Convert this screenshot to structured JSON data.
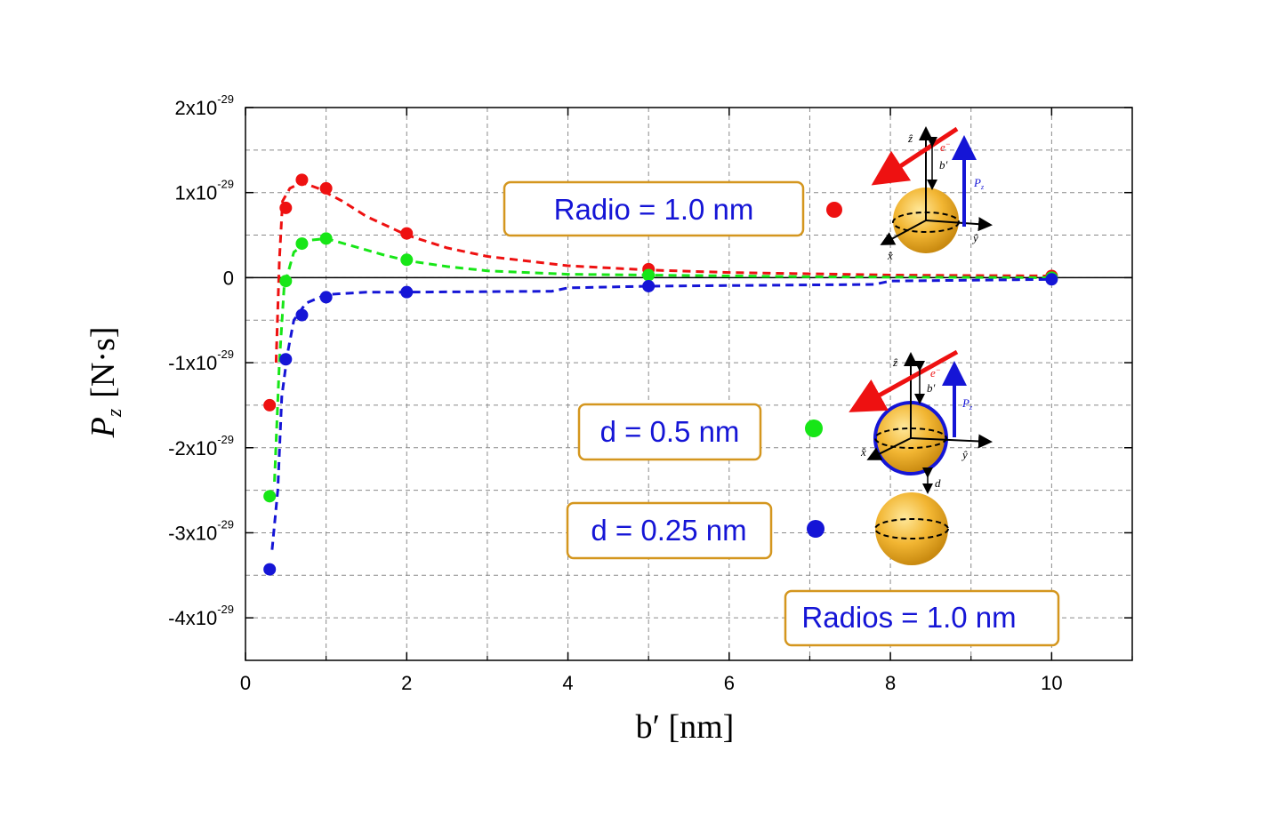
{
  "chart_data": {
    "type": "scatter",
    "xlabel": "b′ [nm]",
    "ylabel_main": "P",
    "ylabel_sub": "z",
    "ylabel_unit": "[N·s]",
    "xlim": [
      0,
      11
    ],
    "ylim": [
      -4.5e-29,
      2e-29
    ],
    "x_ticks": [
      0,
      2,
      4,
      6,
      8,
      10
    ],
    "x_tick_labels": [
      "0",
      "2",
      "4",
      "6",
      "8",
      "10"
    ],
    "y_ticks": [
      2e-29,
      1e-29,
      0,
      -1e-29,
      -2e-29,
      -3e-29,
      -4e-29
    ],
    "y_tick_labels": [
      {
        "base": "2x10",
        "exp": "-29"
      },
      {
        "base": "1x10",
        "exp": "-29"
      },
      {
        "base": "0",
        "exp": ""
      },
      {
        "base": "-1x10",
        "exp": "-29"
      },
      {
        "base": "-2x10",
        "exp": "-29"
      },
      {
        "base": "-3x10",
        "exp": "-29"
      },
      {
        "base": "-4x10",
        "exp": "-29"
      }
    ],
    "grid": true,
    "series": [
      {
        "color": "#ee1111",
        "points": [
          [
            0.3,
            -1.5e-29
          ],
          [
            0.5,
            8.2e-30
          ],
          [
            0.7,
            1.15e-29
          ],
          [
            1.0,
            1.05e-29
          ],
          [
            2.0,
            5.2e-30
          ],
          [
            5.0,
            1e-30
          ],
          [
            10.0,
            2e-31
          ]
        ],
        "curve": [
          [
            0.38,
            -1e-29
          ],
          [
            0.42,
            2e-30
          ],
          [
            0.46,
            9e-30
          ],
          [
            0.55,
            1.05e-29
          ],
          [
            0.7,
            1.12e-29
          ],
          [
            0.9,
            1.05e-29
          ],
          [
            1.2,
            9e-30
          ],
          [
            1.5,
            7.2e-30
          ],
          [
            2.0,
            5e-30
          ],
          [
            2.5,
            3.5e-30
          ],
          [
            3.0,
            2.5e-30
          ],
          [
            4.0,
            1.4e-30
          ],
          [
            5.0,
            9e-31
          ],
          [
            6.0,
            6e-31
          ],
          [
            8.0,
            3e-31
          ],
          [
            10.0,
            2e-31
          ]
        ]
      },
      {
        "color": "#17e617",
        "points": [
          [
            0.3,
            -2.57e-29
          ],
          [
            0.5,
            -4e-31
          ],
          [
            0.7,
            4e-30
          ],
          [
            1.0,
            4.6e-30
          ],
          [
            2.0,
            2.1e-30
          ],
          [
            5.0,
            3e-31
          ],
          [
            10.0,
            0.0
          ]
        ],
        "curve": [
          [
            0.36,
            -2.4e-29
          ],
          [
            0.42,
            -1e-29
          ],
          [
            0.48,
            -1e-30
          ],
          [
            0.6,
            3e-30
          ],
          [
            0.8,
            4.4e-30
          ],
          [
            1.0,
            4.6e-30
          ],
          [
            1.3,
            3.8e-30
          ],
          [
            1.7,
            2.7e-30
          ],
          [
            2.0,
            2e-30
          ],
          [
            2.5,
            1.3e-30
          ],
          [
            3.0,
            8e-31
          ],
          [
            4.0,
            4e-31
          ],
          [
            5.0,
            3e-31
          ],
          [
            7.0,
            1e-31
          ],
          [
            10.0,
            0.0
          ]
        ]
      },
      {
        "color": "#1515d6",
        "points": [
          [
            0.3,
            -3.43e-29
          ],
          [
            0.5,
            -9.6e-30
          ],
          [
            0.7,
            -4.4e-30
          ],
          [
            1.0,
            -2.3e-30
          ],
          [
            2.0,
            -1.7e-30
          ],
          [
            5.0,
            -1e-30
          ],
          [
            10.0,
            -2e-31
          ]
        ],
        "curve": [
          [
            0.33,
            -3.2e-29
          ],
          [
            0.4,
            -2.5e-29
          ],
          [
            0.45,
            -1.4e-29
          ],
          [
            0.52,
            -9e-30
          ],
          [
            0.6,
            -5e-30
          ],
          [
            0.75,
            -3e-30
          ],
          [
            1.0,
            -2e-30
          ],
          [
            1.5,
            -1.7e-30
          ],
          [
            2.0,
            -1.7e-30
          ],
          [
            3.8,
            -1.6e-30
          ],
          [
            4.0,
            -1.2e-30
          ],
          [
            5.0,
            -1e-30
          ],
          [
            7.8,
            -8e-31
          ],
          [
            8.0,
            -4e-31
          ],
          [
            10.0,
            -2e-31
          ]
        ]
      }
    ],
    "legend": [
      {
        "label": "Radio = 1.0 nm",
        "color": "#ee1111"
      },
      {
        "label": "d = 0.5 nm",
        "color": "#17e617"
      },
      {
        "label": "d = 0.25 nm",
        "color": "#1515d6"
      }
    ],
    "note": "Radios = 1.0 nm"
  },
  "inset": {
    "z_hat": "ẑ",
    "y_hat": "ŷ",
    "x_hat": "x̂",
    "b_prime": "b′",
    "p_z_main": "P",
    "p_z_sub": "z",
    "electron": "e",
    "electron_sup": "−",
    "d": "d"
  }
}
